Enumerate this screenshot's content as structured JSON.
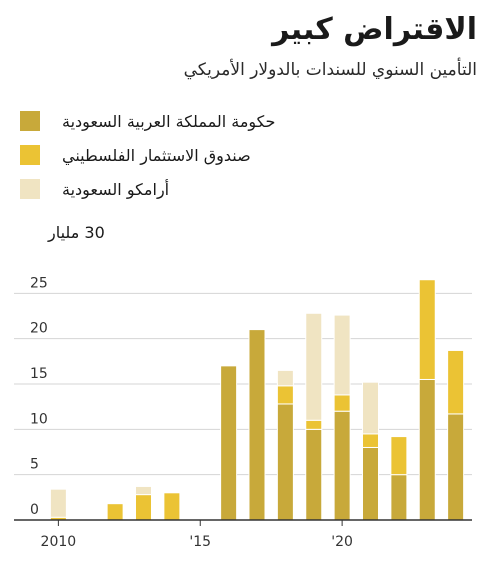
{
  "chart_data": {
    "type": "bar",
    "stacked": true,
    "title": "الاقتراض كبير",
    "subtitle": "التأمين السنوي للسندات بالدولار الأمريكي",
    "unit_label": "30 مليار",
    "x": [
      2009,
      2010,
      2011,
      2012,
      2013,
      2014,
      2015,
      2016,
      2017,
      2018,
      2019,
      2020,
      2021,
      2022,
      2023,
      2024
    ],
    "x_ticks": [
      {
        "value": 2010,
        "label": "2010"
      },
      {
        "value": 2015,
        "label": "'15"
      },
      {
        "value": 2020,
        "label": "'20"
      }
    ],
    "y_ticks": [
      0,
      5,
      10,
      15,
      20,
      25
    ],
    "ylim": [
      0,
      30
    ],
    "grid": true,
    "legend_position": "top",
    "series": [
      {
        "name": "حكومة المملكة العربية السعودية",
        "color": "#c8a93a",
        "values": [
          0,
          0,
          0,
          0,
          0,
          0,
          0,
          17,
          21,
          12.8,
          10,
          12,
          8,
          5,
          15.5,
          11.7
        ]
      },
      {
        "name": "صندوق الاستثمار الفلسطيني",
        "color": "#ebc334",
        "values": [
          0,
          0.3,
          0,
          1.8,
          2.8,
          3,
          0,
          0,
          0,
          2,
          1,
          1.8,
          1.5,
          4.2,
          11,
          7
        ]
      },
      {
        "name": "أرامكو السعودية",
        "color": "#f0e4c2",
        "values": [
          0,
          3.1,
          0,
          0,
          0.9,
          0,
          0,
          0,
          0,
          1.7,
          11.8,
          8.8,
          5.7,
          0,
          0,
          0
        ]
      }
    ]
  }
}
